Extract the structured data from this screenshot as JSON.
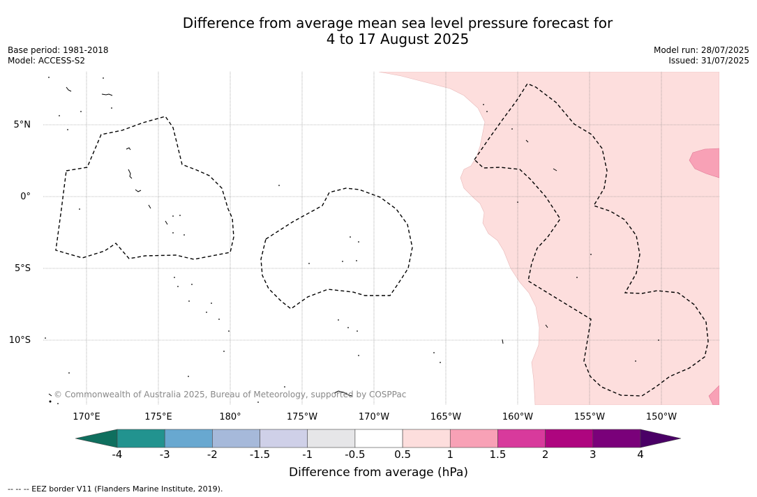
{
  "title_line1": "Difference from average mean sea level pressure forecast for",
  "title_line2": "4 to 17 August 2025",
  "base_period": "Base period: 1981-2018",
  "model": "Model: ACCESS-S2",
  "model_run": "Model run: 28/07/2025",
  "issued": "Issued: 31/07/2025",
  "lat_labels": [
    "5°N",
    "0°",
    "5°S",
    "10°S"
  ],
  "lon_labels": [
    "170°E",
    "175°E",
    "180°",
    "175°W",
    "170°W",
    "165°W",
    "160°W",
    "155°W",
    "150°W"
  ],
  "copyright": "© Commonwealth of Australia 2025, Bureau of Meteorology, supported by COSPPac",
  "colorbar": {
    "ticks": [
      "-4",
      "-3",
      "-2",
      "-1.5",
      "-1",
      "-0.5",
      "0.5",
      "1",
      "1.5",
      "2",
      "3",
      "4"
    ],
    "colors": [
      "#0f6f5e",
      "#22938f",
      "#68a8d0",
      "#a6b9da",
      "#cfd0e8",
      "#e6e6e8",
      "#ffffff",
      "#fddedd",
      "#f8a1b6",
      "#d83a9c",
      "#ae057f",
      "#7a017a",
      "#4a0066"
    ],
    "label": "Difference from average (hPa)"
  },
  "footnote": "--  --  -- EEZ border V11 (Flanders Marine Institute, 2019).",
  "fill_colors": {
    "light_pink": "#fddedd",
    "pink": "#f8a1b6"
  }
}
